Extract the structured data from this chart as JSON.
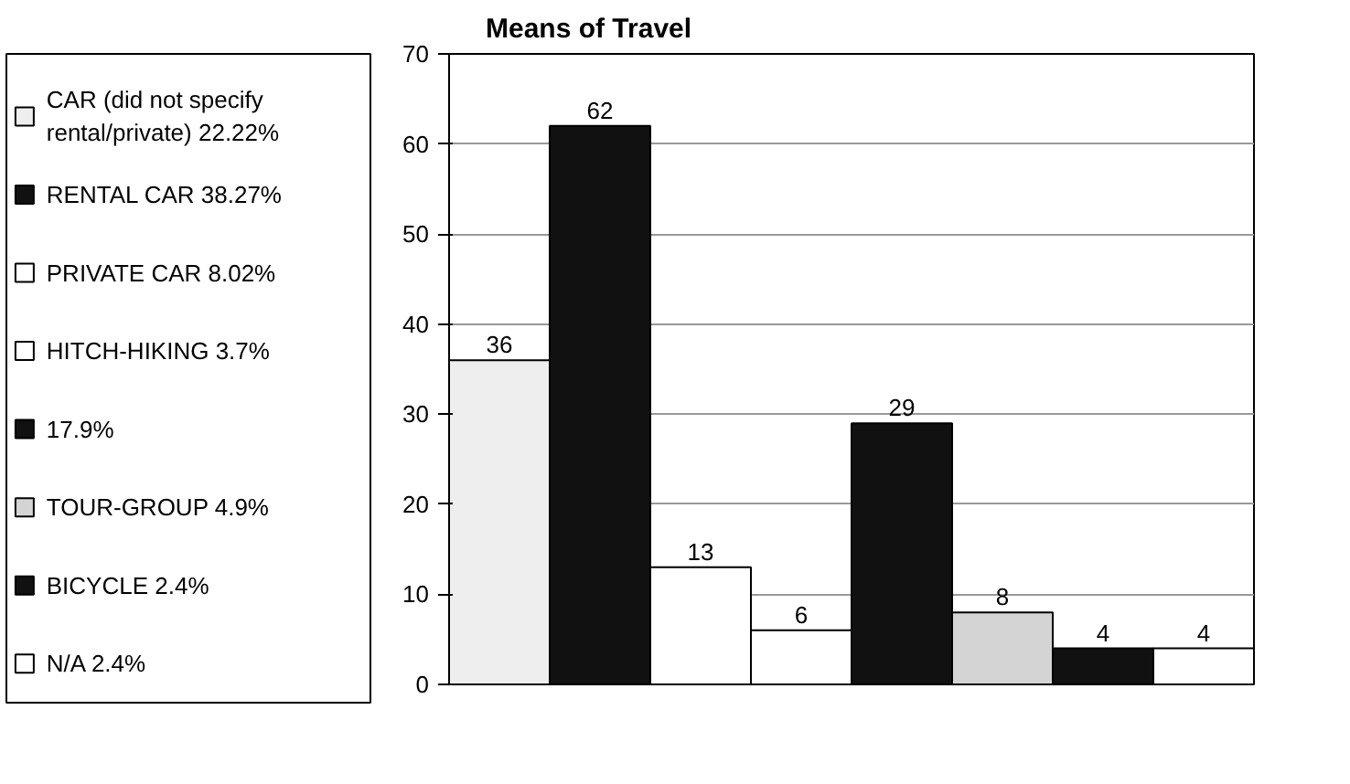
{
  "chart_data": {
    "type": "bar",
    "title": "Means of Travel",
    "stacked": true,
    "categories": [
      null,
      null,
      null,
      null,
      null,
      null,
      null,
      null
    ],
    "series": [
      {
        "name": "CAR (did not specify rental/private) 22.22%",
        "color": "#eeeeee",
        "values": [
          36,
          null,
          null,
          null,
          null,
          null,
          null,
          null
        ]
      },
      {
        "name": "RENTAL CAR 38.27%",
        "color": "#111111",
        "values": [
          null,
          62,
          null,
          null,
          null,
          null,
          null,
          null
        ]
      },
      {
        "name": "PRIVATE CAR 8.02%",
        "color": "#ffffff",
        "values": [
          null,
          null,
          13,
          null,
          null,
          null,
          null,
          null
        ]
      },
      {
        "name": "HITCH-HIKING 3.7%",
        "color": "#ffffff",
        "values": [
          null,
          null,
          null,
          6,
          null,
          null,
          null,
          null
        ]
      },
      {
        "name": "17.9%",
        "color": "#111111",
        "values": [
          null,
          null,
          null,
          null,
          29,
          null,
          null,
          null
        ]
      },
      {
        "name": "TOUR-GROUP 4.9%",
        "color": "#d4d4d4",
        "values": [
          null,
          null,
          null,
          null,
          null,
          8,
          null,
          null
        ]
      },
      {
        "name": "BICYCLE 2.4%",
        "color": "#111111",
        "values": [
          null,
          null,
          null,
          null,
          null,
          null,
          4,
          null
        ]
      },
      {
        "name": "N/A 2.4%",
        "color": "#ffffff",
        "values": [
          null,
          null,
          null,
          null,
          null,
          null,
          null,
          4
        ]
      }
    ],
    "ylim": [
      0,
      70
    ],
    "yticks": [
      0,
      10,
      20,
      30,
      40,
      50,
      60,
      70
    ],
    "grid": "y",
    "legend": "left",
    "data_labels": true,
    "tick_labels": "y"
  }
}
